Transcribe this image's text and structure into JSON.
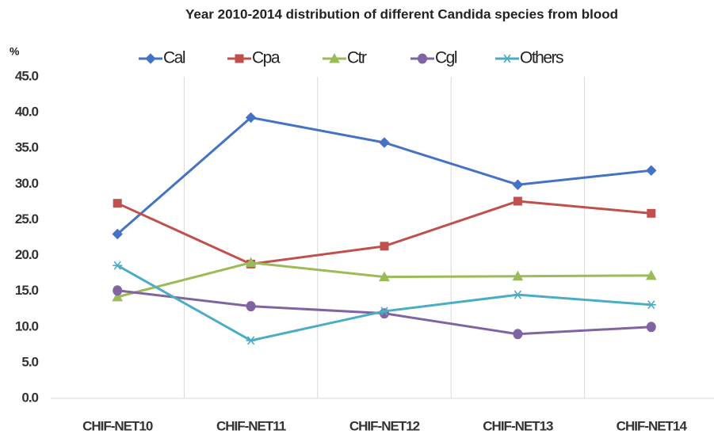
{
  "chart_data": {
    "type": "line",
    "title": "Year 2010-2014 distribution of different Candida species from blood",
    "y_label": "%",
    "categories": [
      "CHIF-NET10",
      "CHIF-NET11",
      "CHIF-NET12",
      "CHIF-NET13",
      "CHIF-NET14"
    ],
    "series": [
      {
        "name": "Cal",
        "color": "#4472c4",
        "marker": "diamond",
        "values": [
          23.0,
          39.3,
          35.8,
          29.9,
          31.9
        ]
      },
      {
        "name": "Cpa",
        "color": "#c0504d",
        "marker": "square",
        "values": [
          27.3,
          18.8,
          21.3,
          27.6,
          25.9
        ]
      },
      {
        "name": "Ctr",
        "color": "#9bbb59",
        "marker": "triangle",
        "values": [
          14.2,
          19.0,
          17.0,
          17.1,
          17.2
        ]
      },
      {
        "name": "Cgl",
        "color": "#8064a2",
        "marker": "circle",
        "values": [
          15.1,
          12.9,
          11.9,
          9.0,
          10.0
        ]
      },
      {
        "name": "Others",
        "color": "#4bacc6",
        "marker": "star",
        "values": [
          18.6,
          8.1,
          12.2,
          14.5,
          13.1
        ]
      }
    ],
    "ylim": [
      0,
      45
    ],
    "yticks": [
      {
        "value": 0,
        "label": "0.0"
      },
      {
        "value": 5,
        "label": "5.0"
      },
      {
        "value": 10,
        "label": "10.0"
      },
      {
        "value": 15,
        "label": "15.0"
      },
      {
        "value": 20,
        "label": "20.0"
      },
      {
        "value": 25,
        "label": "25.0"
      },
      {
        "value": 30,
        "label": "30.0"
      },
      {
        "value": 35,
        "label": "35.0"
      },
      {
        "value": 40,
        "label": "40.0"
      },
      {
        "value": 45,
        "label": "45.0"
      }
    ],
    "legend": "top"
  }
}
